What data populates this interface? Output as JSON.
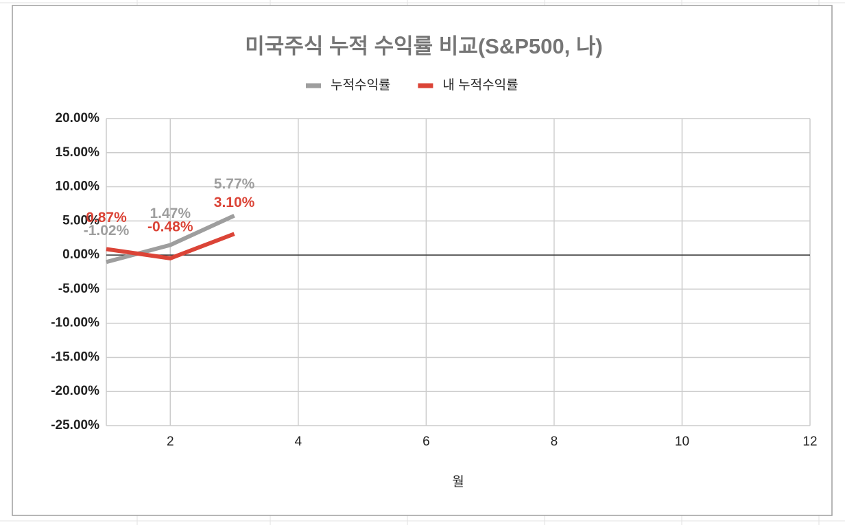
{
  "chart_data": {
    "type": "line",
    "title": "미국주식 누적 수익률 비교(S&P500, 나)",
    "x_label": "월",
    "x": [
      1,
      2,
      3
    ],
    "series": [
      {
        "name": "누적수익률",
        "color": "#9e9e9e",
        "values": [
          -1.02,
          1.47,
          5.77
        ],
        "value_labels": [
          "-1.02%",
          "1.47%",
          "5.77%"
        ]
      },
      {
        "name": "내 누적수익률",
        "color": "#db4437",
        "values": [
          0.87,
          -0.48,
          3.1
        ],
        "value_labels": [
          "0.87%",
          "-0.48%",
          "3.10%"
        ]
      }
    ],
    "xlim": [
      1,
      12
    ],
    "xticks": [
      2,
      4,
      6,
      8,
      10,
      12
    ],
    "ylim": [
      -25,
      20
    ],
    "yticks": [
      {
        "value": -25,
        "label": "-25.00%"
      },
      {
        "value": -20,
        "label": "-20.00%"
      },
      {
        "value": -15,
        "label": "-15.00%"
      },
      {
        "value": -10,
        "label": "-10.00%"
      },
      {
        "value": -5,
        "label": "-5.00%"
      },
      {
        "value": 0,
        "label": "0.00%"
      },
      {
        "value": 5,
        "label": "5.00%"
      },
      {
        "value": 10,
        "label": "10.00%"
      },
      {
        "value": 15,
        "label": "15.00%"
      },
      {
        "value": 20,
        "label": "20.00%"
      }
    ],
    "grid": true,
    "legend": "top"
  }
}
